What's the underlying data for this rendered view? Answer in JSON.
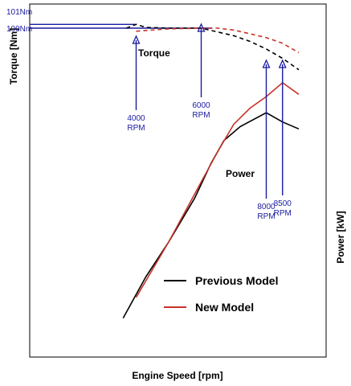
{
  "chart_data": {
    "type": "line",
    "xlabel": "Engine Speed [rpm]",
    "ylabel_left": "Torque [Nm]",
    "ylabel_right": "Power [kW]",
    "torque_levels": [
      {
        "label": "101Nm",
        "value": 101
      },
      {
        "label": "100Nm",
        "value": 100
      }
    ],
    "rpm_markers": [
      {
        "rpm": 4000,
        "lines": [
          "4000",
          "RPM"
        ]
      },
      {
        "rpm": 6000,
        "lines": [
          "6000",
          "RPM"
        ]
      },
      {
        "rpm": 8000,
        "lines": [
          "8000",
          "RPM"
        ]
      },
      {
        "rpm": 8500,
        "lines": [
          "8500",
          "RPM"
        ]
      }
    ],
    "annotations": {
      "torque": "Torque",
      "power": "Power"
    },
    "legend_position": "bottom-center",
    "series": [
      {
        "name": "Previous Model",
        "color": "#000000",
        "torque": {
          "x": [
            3700,
            4000,
            4300,
            5000,
            6000,
            7000,
            7500,
            8000,
            8500,
            9000
          ],
          "y": [
            100,
            101,
            100.2,
            100,
            100,
            98,
            96.5,
            94.5,
            92,
            89
          ]
        },
        "power": {
          "x": [
            3600,
            4300,
            5000,
            5800,
            6300,
            6700,
            7200,
            8000,
            8500,
            9000
          ],
          "y": [
            5,
            23,
            38,
            57,
            72,
            82,
            88,
            94,
            90,
            87
          ]
        }
      },
      {
        "name": "New Model",
        "color": "#c8322a",
        "torque": {
          "x": [
            4000,
            5000,
            6000,
            6500,
            7000,
            7500,
            8000,
            8500,
            9000
          ],
          "y": [
            99.2,
            99.8,
            100,
            100,
            99.5,
            98.5,
            97.5,
            96,
            93.5
          ]
        },
        "power": {
          "x": [
            4000,
            5000,
            6000,
            6500,
            7000,
            7500,
            8000,
            8500,
            9000
          ],
          "y": [
            14,
            38,
            64,
            77,
            89,
            96,
            101,
            107,
            102
          ]
        }
      }
    ]
  }
}
